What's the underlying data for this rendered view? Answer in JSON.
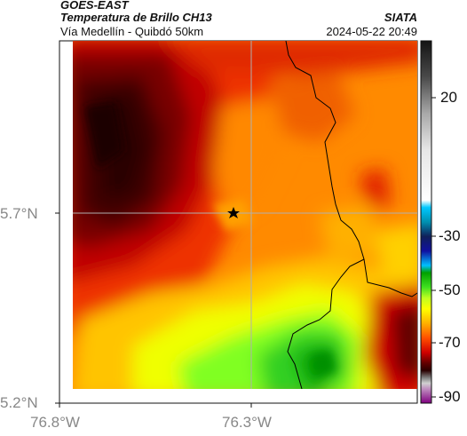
{
  "header": {
    "satellite": "GOES-EAST",
    "product": "Temperatura de Brillo CH13",
    "route": "Vía Medellín - Quibdó 50km",
    "agency": "SIATA",
    "datetime": "2024-05-22 20:49"
  },
  "map": {
    "lat_ticks": [
      "5.7°N",
      "5.2°N"
    ],
    "lon_ticks": [
      "76.8°W",
      "76.3°W"
    ],
    "marker_icon": "star-icon"
  },
  "colorbar": {
    "ticks": [
      "20",
      "-30",
      "-50",
      "-70",
      "-90"
    ]
  }
}
